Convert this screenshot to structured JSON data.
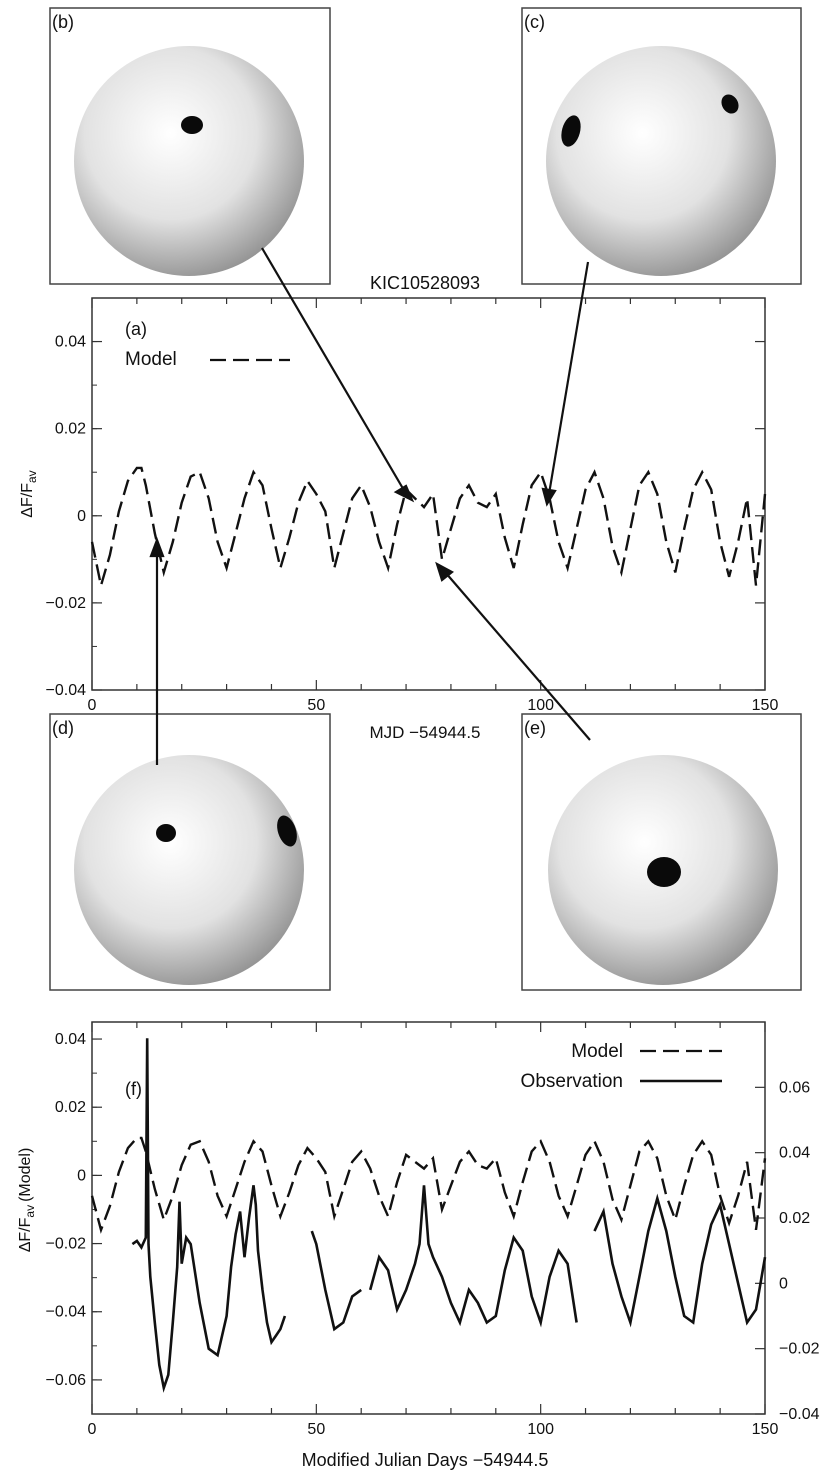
{
  "title": "KIC10528093",
  "panels": {
    "a": "(a)",
    "b": "(b)",
    "c": "(c)",
    "d": "(d)",
    "e": "(e)",
    "f": "(f)"
  },
  "legend": {
    "model": "Model",
    "observation": "Observation"
  },
  "colors": {
    "line": "#111111",
    "frame": "#333333",
    "sphere_light": "#ffffff",
    "sphere_dark": "#8a8a8a",
    "spot": "#0a0a0a"
  },
  "chart_data": [
    {
      "type": "line",
      "panel": "(a)",
      "title": "KIC10528093",
      "xlabel": "MJD −54944.5",
      "ylabel": "ΔF/F",
      "ylabel_sub": "av",
      "xlim": [
        0,
        150
      ],
      "ylim": [
        -0.04,
        0.05
      ],
      "xticks": [
        "0",
        "50",
        "100",
        "150"
      ],
      "yticks": [
        "−0.04",
        "−0.02",
        "0",
        "0.02",
        "0.04"
      ],
      "series": [
        {
          "name": "Model",
          "style": "dashed",
          "x": [
            0,
            2,
            4,
            6,
            8,
            10,
            11,
            12,
            14,
            16,
            18,
            20,
            22,
            24,
            26,
            28,
            30,
            32,
            34,
            36,
            38,
            40,
            42,
            44,
            46,
            48,
            50,
            52,
            54,
            56,
            58,
            60,
            62,
            64,
            66,
            68,
            70,
            72,
            74,
            76,
            78,
            80,
            82,
            84,
            86,
            88,
            90,
            92,
            94,
            96,
            98,
            100,
            102,
            104,
            106,
            108,
            110,
            112,
            114,
            116,
            118,
            120,
            122,
            124,
            126,
            128,
            130,
            132,
            134,
            136,
            138,
            140,
            142,
            144,
            146,
            148,
            150
          ],
          "y": [
            -0.006,
            -0.016,
            -0.009,
            0.001,
            0.008,
            0.011,
            0.011,
            0.007,
            -0.004,
            -0.013,
            -0.006,
            0.003,
            0.009,
            0.01,
            0.004,
            -0.006,
            -0.012,
            -0.004,
            0.004,
            0.01,
            0.007,
            -0.003,
            -0.012,
            -0.005,
            0.003,
            0.008,
            0.005,
            0.001,
            -0.012,
            -0.004,
            0.004,
            0.007,
            0.002,
            -0.006,
            -0.012,
            -0.002,
            0.006,
            0.004,
            0.002,
            0.005,
            -0.01,
            -0.003,
            0.004,
            0.007,
            0.003,
            0.002,
            0.005,
            -0.005,
            -0.012,
            -0.002,
            0.007,
            0.01,
            0.004,
            -0.006,
            -0.012,
            -0.003,
            0.006,
            0.01,
            0.004,
            -0.007,
            -0.013,
            -0.003,
            0.007,
            0.01,
            0.005,
            -0.006,
            -0.013,
            -0.003,
            0.006,
            0.01,
            0.006,
            -0.006,
            -0.014,
            -0.006,
            0.004,
            -0.016,
            0.005
          ]
        }
      ]
    },
    {
      "type": "line",
      "panel": "(f)",
      "xlabel": "Modified Julian Days −54944.5",
      "ylabel": "ΔF/F",
      "ylabel_sub": "av",
      "ylabel_suffix": "(Model)",
      "xlim": [
        0,
        150
      ],
      "ylim": [
        -0.07,
        0.045
      ],
      "y2lim": [
        -0.04,
        0.08
      ],
      "xticks": [
        "0",
        "50",
        "100",
        "150"
      ],
      "yticks": [
        "−0.06",
        "−0.04",
        "−0.02",
        "0",
        "0.02",
        "0.04"
      ],
      "y2ticks": [
        "−0.04",
        "−0.02",
        "0",
        "0.02",
        "0.04",
        "0.06"
      ],
      "series": [
        {
          "name": "Model",
          "style": "dashed",
          "axis": "left",
          "x": [
            0,
            2,
            4,
            6,
            8,
            10,
            11,
            12,
            14,
            16,
            18,
            20,
            22,
            24,
            26,
            28,
            30,
            32,
            34,
            36,
            38,
            40,
            42,
            44,
            46,
            48,
            50,
            52,
            54,
            56,
            58,
            60,
            62,
            64,
            66,
            68,
            70,
            72,
            74,
            76,
            78,
            80,
            82,
            84,
            86,
            88,
            90,
            92,
            94,
            96,
            98,
            100,
            102,
            104,
            106,
            108,
            110,
            112,
            114,
            116,
            118,
            120,
            122,
            124,
            126,
            128,
            130,
            132,
            134,
            136,
            138,
            140,
            142,
            144,
            146,
            148,
            150
          ],
          "y": [
            -0.006,
            -0.016,
            -0.009,
            0.001,
            0.008,
            0.011,
            0.011,
            0.007,
            -0.004,
            -0.013,
            -0.006,
            0.003,
            0.009,
            0.01,
            0.004,
            -0.006,
            -0.012,
            -0.004,
            0.004,
            0.01,
            0.007,
            -0.003,
            -0.012,
            -0.005,
            0.003,
            0.008,
            0.005,
            0.001,
            -0.012,
            -0.004,
            0.004,
            0.007,
            0.002,
            -0.006,
            -0.012,
            -0.002,
            0.006,
            0.004,
            0.002,
            0.005,
            -0.01,
            -0.003,
            0.004,
            0.007,
            0.003,
            0.002,
            0.005,
            -0.005,
            -0.012,
            -0.002,
            0.007,
            0.01,
            0.004,
            -0.006,
            -0.012,
            -0.003,
            0.006,
            0.01,
            0.004,
            -0.007,
            -0.013,
            -0.003,
            0.007,
            0.01,
            0.005,
            -0.006,
            -0.013,
            -0.003,
            0.006,
            0.01,
            0.006,
            -0.006,
            -0.014,
            -0.006,
            0.004,
            -0.016,
            0.005
          ]
        },
        {
          "name": "Observation",
          "style": "solid",
          "axis": "right",
          "segments": [
            {
              "x": [
                9,
                10,
                11,
                12,
                12.3,
                12.6,
                13,
                14,
                15,
                16,
                17,
                18,
                19,
                19.5,
                20,
                21,
                22,
                24,
                26,
                28,
                30,
                31,
                32,
                33,
                34,
                35,
                36,
                36.5,
                37,
                38,
                39,
                40,
                41,
                42,
                43
              ],
              "y": [
                0.012,
                0.013,
                0.011,
                0.014,
                0.075,
                0.012,
                0.002,
                -0.012,
                -0.025,
                -0.032,
                -0.028,
                -0.012,
                0.005,
                0.025,
                0.006,
                0.014,
                0.012,
                -0.006,
                -0.02,
                -0.022,
                -0.01,
                0.005,
                0.015,
                0.022,
                0.008,
                0.02,
                0.03,
                0.024,
                0.01,
                -0.002,
                -0.012,
                -0.018,
                -0.016,
                -0.014,
                -0.01
              ]
            },
            {
              "x": [
                49,
                50,
                52,
                54,
                56,
                58,
                60
              ],
              "y": [
                0.016,
                0.012,
                -0.002,
                -0.014,
                -0.012,
                -0.004,
                -0.002
              ]
            },
            {
              "x": [
                62,
                64,
                66,
                68,
                70,
                72,
                73,
                74,
                75,
                76,
                78,
                80,
                82,
                84,
                86,
                88,
                90,
                92,
                94,
                96,
                98,
                100,
                102,
                104,
                106,
                108
              ],
              "y": [
                -0.002,
                0.008,
                0.004,
                -0.008,
                -0.002,
                0.006,
                0.012,
                0.03,
                0.012,
                0.008,
                0.002,
                -0.006,
                -0.012,
                -0.002,
                -0.006,
                -0.012,
                -0.01,
                0.004,
                0.014,
                0.01,
                -0.004,
                -0.012,
                0.002,
                0.01,
                0.006,
                -0.012
              ]
            },
            {
              "x": [
                112,
                114,
                116,
                118,
                120,
                122,
                124,
                126,
                128,
                130,
                132,
                134,
                136,
                138,
                140,
                142,
                144,
                146,
                148,
                150
              ],
              "y": [
                0.016,
                0.022,
                0.006,
                -0.004,
                -0.012,
                0.002,
                0.016,
                0.026,
                0.016,
                0.002,
                -0.01,
                -0.012,
                0.006,
                0.018,
                0.024,
                0.012,
                0.0,
                -0.012,
                -0.008,
                0.008
              ]
            }
          ]
        }
      ]
    }
  ]
}
